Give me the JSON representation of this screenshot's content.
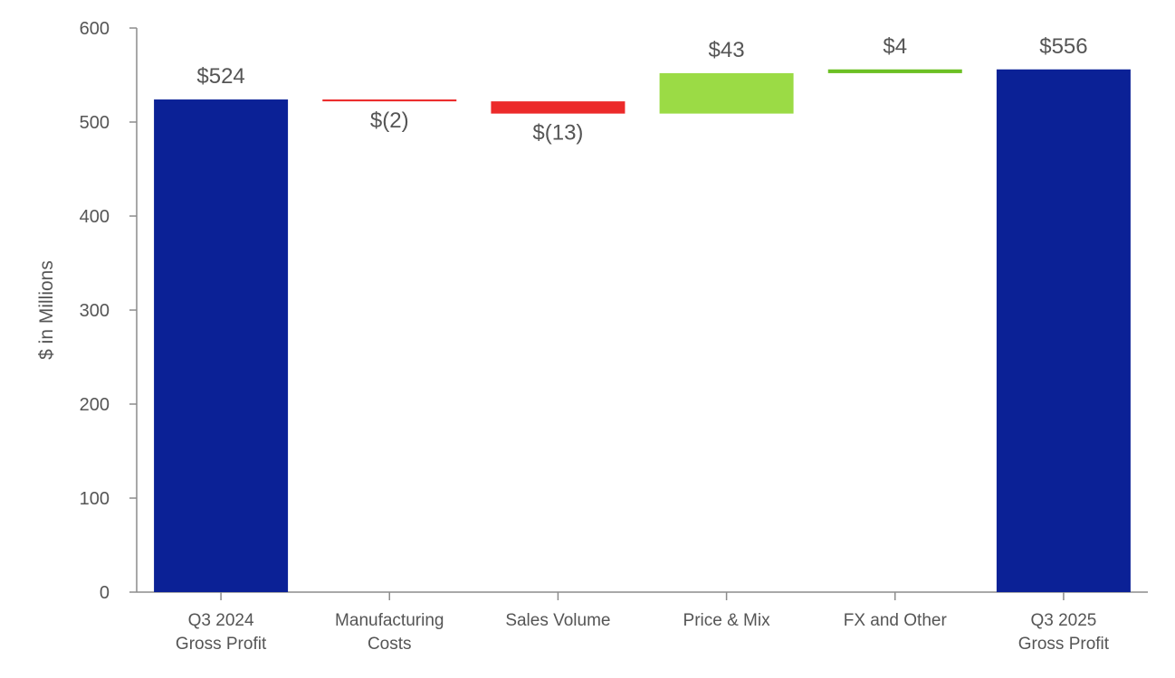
{
  "chart_data": {
    "type": "waterfall",
    "title": "",
    "xlabel": "",
    "ylabel": "$ in Millions",
    "ylim": [
      0,
      600
    ],
    "yticks": [
      0,
      100,
      200,
      300,
      400,
      500,
      600
    ],
    "grid": false,
    "colors": {
      "total": "#0b2196",
      "decrease": "#ec2a2a",
      "increase_price_mix": "#9bdb45",
      "increase_fx": "#6cc024"
    },
    "bars": [
      {
        "category_lines": [
          "Q3 2024",
          "Gross Profit"
        ],
        "kind": "total",
        "start": 0,
        "end": 524,
        "label": "$524",
        "label_position": "above",
        "color_key": "total"
      },
      {
        "category_lines": [
          "Manufacturing",
          "Costs"
        ],
        "kind": "decrease",
        "start": 524,
        "end": 522,
        "label": "$(2)",
        "label_position": "below",
        "color_key": "decrease"
      },
      {
        "category_lines": [
          "Sales Volume"
        ],
        "kind": "decrease",
        "start": 522,
        "end": 509,
        "label": "$(13)",
        "label_position": "below",
        "color_key": "decrease"
      },
      {
        "category_lines": [
          "Price & Mix"
        ],
        "kind": "increase",
        "start": 509,
        "end": 552,
        "label": "$43",
        "label_position": "above",
        "color_key": "increase_price_mix"
      },
      {
        "category_lines": [
          "FX and Other"
        ],
        "kind": "increase",
        "start": 552,
        "end": 556,
        "label": "$4",
        "label_position": "above",
        "color_key": "increase_fx"
      },
      {
        "category_lines": [
          "Q3 2025",
          "Gross Profit"
        ],
        "kind": "total",
        "start": 0,
        "end": 556,
        "label": "$556",
        "label_position": "above",
        "color_key": "total"
      }
    ]
  }
}
